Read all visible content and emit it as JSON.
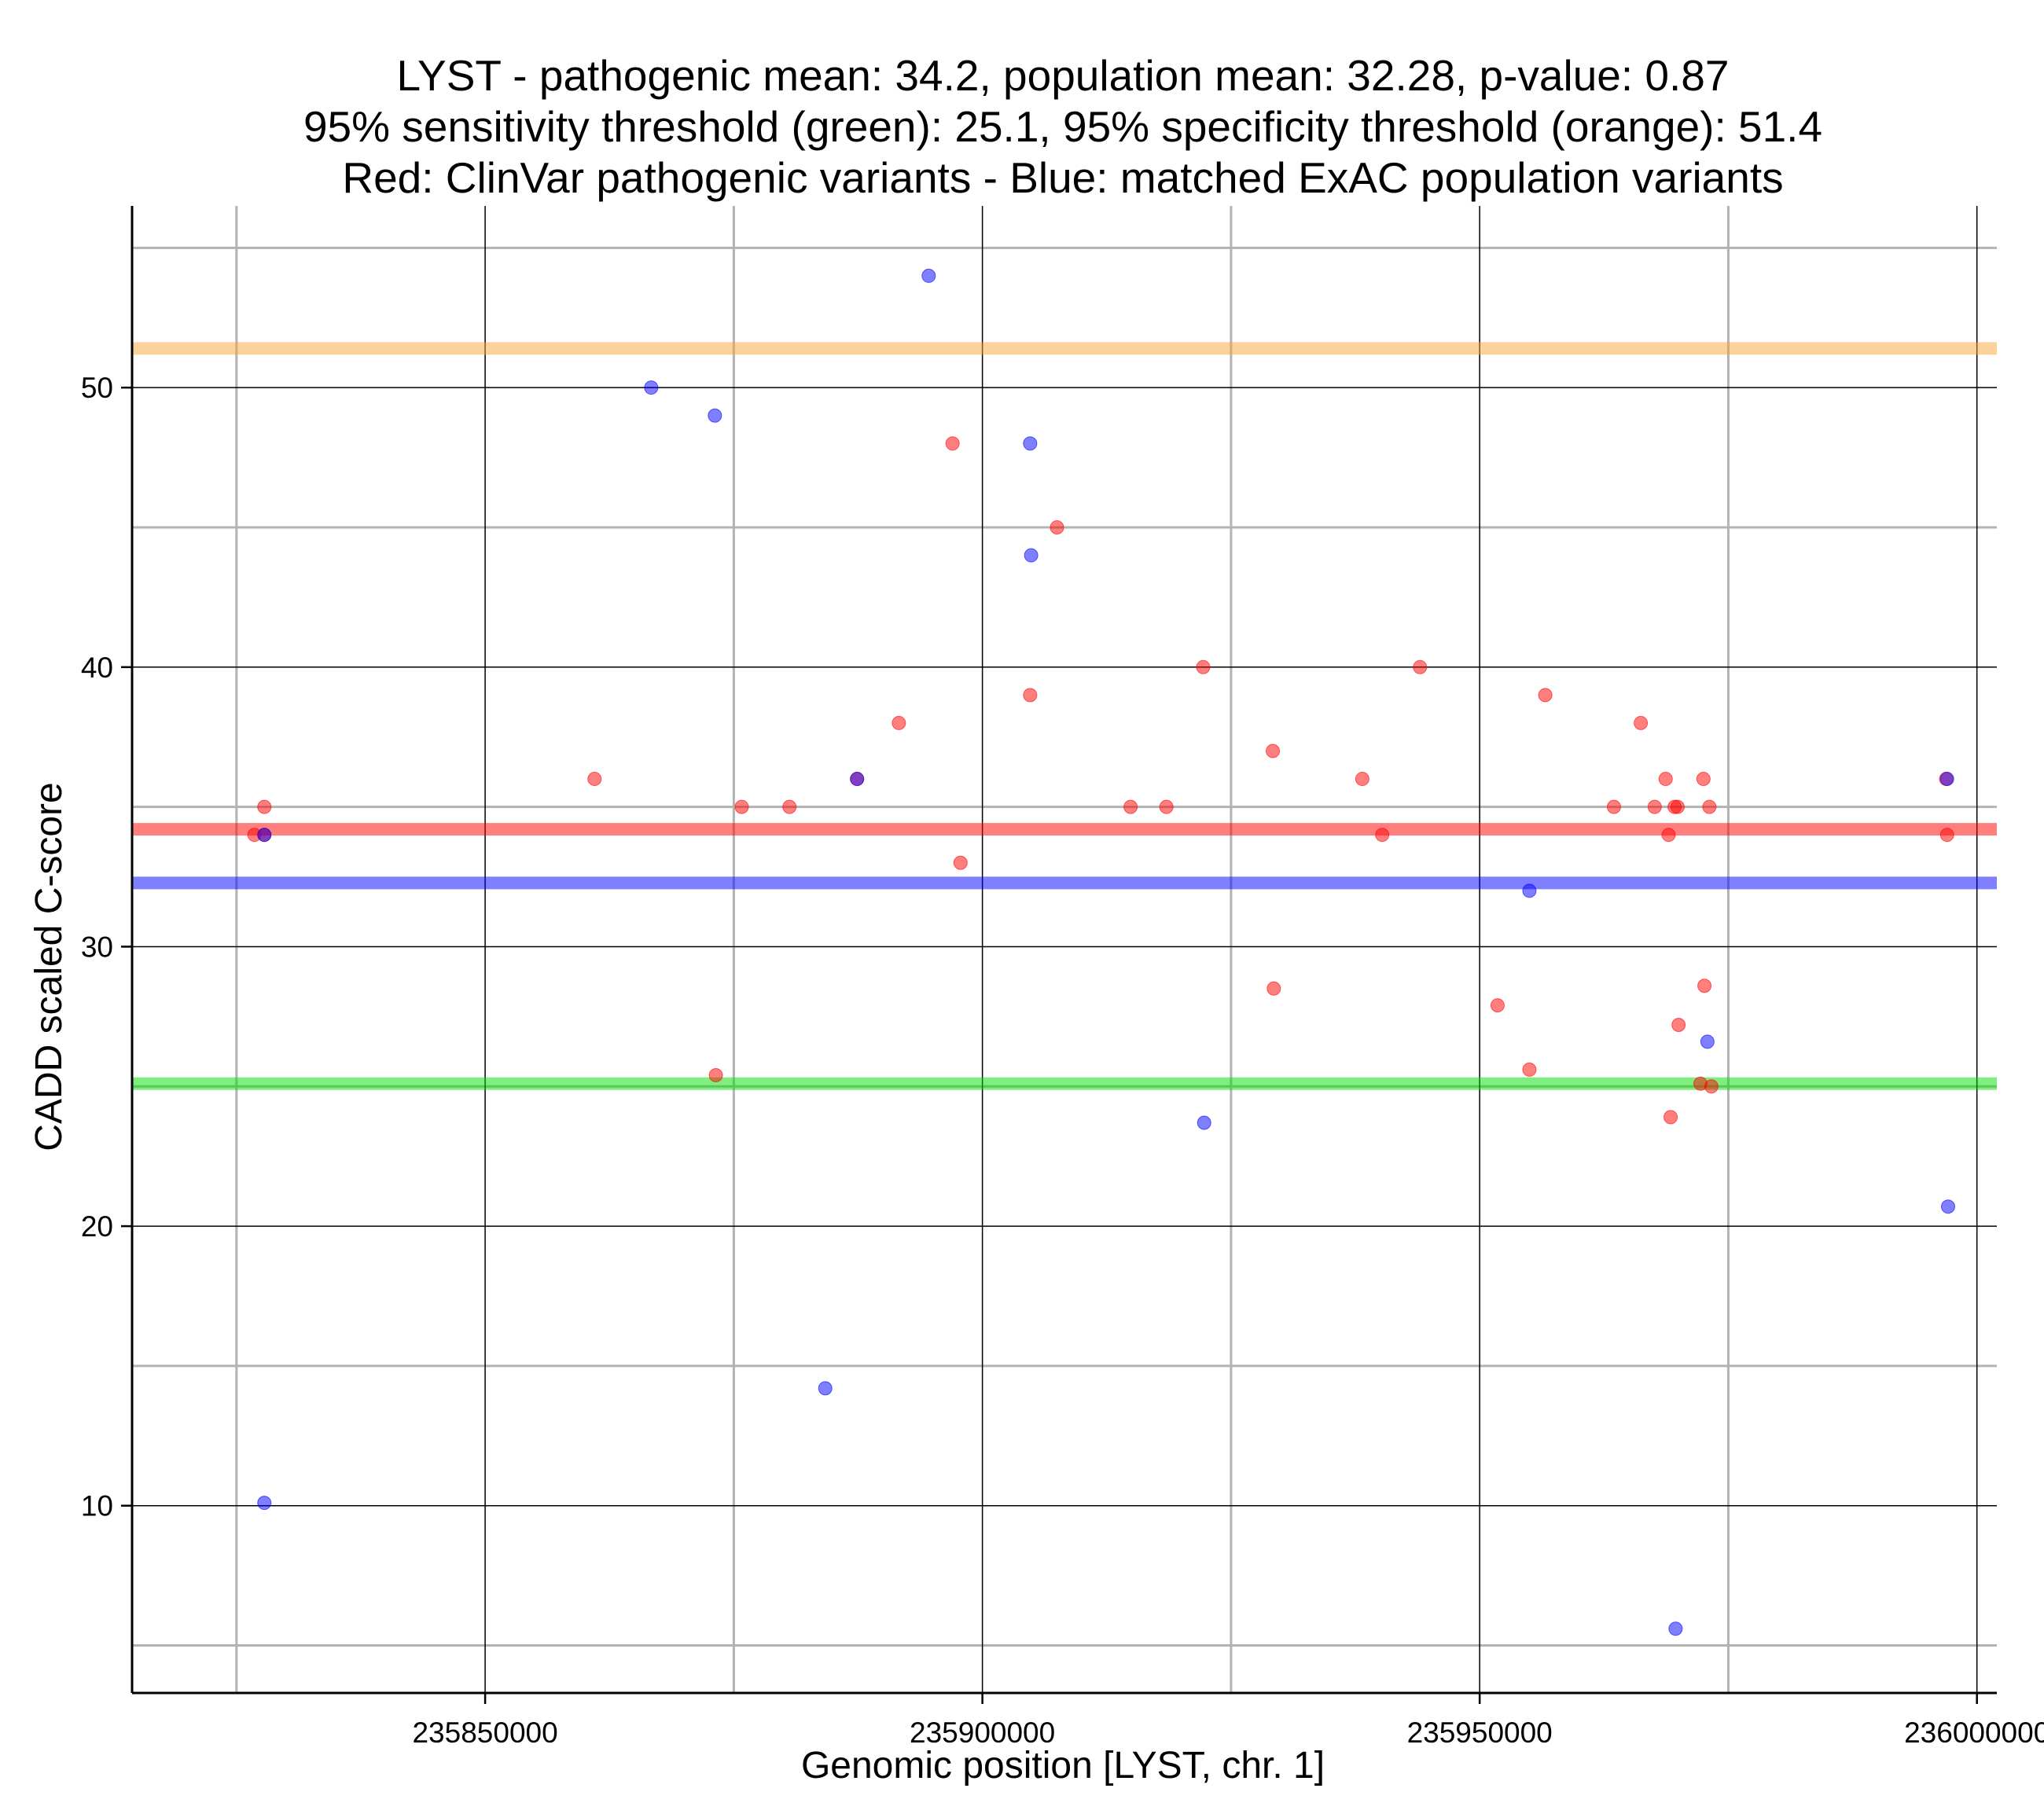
{
  "chart_data": {
    "type": "scatter",
    "title_lines": [
      "LYST - pathogenic mean: 34.2, population mean: 32.28, p-value: 0.87",
      "95% sensitivity threshold (green): 25.1, 95% specificity threshold (orange): 51.4",
      "Red: ClinVar pathogenic variants - Blue: matched ExAC population variants"
    ],
    "xlabel": "Genomic position [LYST, chr. 1]",
    "ylabel": "CADD scaled C-score",
    "xlim": [
      235814500,
      236002000
    ],
    "ylim": [
      3.3,
      56.5
    ],
    "x_major_ticks": [
      235850000,
      235900000,
      235950000,
      236000000
    ],
    "x_tick_labels": [
      "235850000",
      "235900000",
      "235950000",
      "236000000"
    ],
    "x_minor_gridlines": [
      235825000,
      235875000,
      235925000,
      235975000
    ],
    "y_major_ticks": [
      10,
      20,
      30,
      40,
      50
    ],
    "y_tick_labels": [
      "10",
      "20",
      "30",
      "40",
      "50"
    ],
    "y_minor_gridlines": [
      5,
      15,
      25,
      35,
      45,
      55
    ],
    "reference_lines": [
      {
        "name": "specificity-threshold",
        "value": 51.4,
        "color": "#f7a43a"
      },
      {
        "name": "pathogenic-mean",
        "value": 34.2,
        "color": "#ff0000"
      },
      {
        "name": "population-mean",
        "value": 32.28,
        "color": "#0000ff"
      },
      {
        "name": "sensitivity-threshold",
        "value": 25.1,
        "color": "#00dd00"
      }
    ],
    "series": [
      {
        "name": "ClinVar pathogenic variants",
        "color": "#ff0000",
        "points": [
          [
            235827800,
            35
          ],
          [
            235827800,
            34
          ],
          [
            235826800,
            34
          ],
          [
            235861000,
            36
          ],
          [
            235873200,
            25.4
          ],
          [
            235875800,
            35
          ],
          [
            235880600,
            35
          ],
          [
            235887400,
            36
          ],
          [
            235891600,
            38
          ],
          [
            235897000,
            48
          ],
          [
            235897800,
            33
          ],
          [
            235904800,
            39
          ],
          [
            235907500,
            45
          ],
          [
            235914900,
            35
          ],
          [
            235918500,
            35
          ],
          [
            235922200,
            40
          ],
          [
            235929200,
            37
          ],
          [
            235929300,
            28.5
          ],
          [
            235938200,
            36
          ],
          [
            235940200,
            34
          ],
          [
            235944000,
            40
          ],
          [
            235951800,
            27.9
          ],
          [
            235955000,
            25.6
          ],
          [
            235956600,
            39
          ],
          [
            235963500,
            35
          ],
          [
            235966200,
            38
          ],
          [
            235967600,
            35
          ],
          [
            235968700,
            36
          ],
          [
            235969000,
            34
          ],
          [
            235969200,
            23.9
          ],
          [
            235969600,
            35
          ],
          [
            235969900,
            35
          ],
          [
            235970000,
            27.2
          ],
          [
            235972200,
            25.1
          ],
          [
            235972500,
            36
          ],
          [
            235972600,
            28.6
          ],
          [
            235973100,
            35
          ],
          [
            235973300,
            25
          ],
          [
            235996900,
            36
          ],
          [
            235997000,
            34
          ]
        ]
      },
      {
        "name": "matched ExAC population variants",
        "color": "#0000ff",
        "points": [
          [
            235827800,
            34
          ],
          [
            235827800,
            10.1
          ],
          [
            235866700,
            50
          ],
          [
            235873100,
            49
          ],
          [
            235884200,
            14.2
          ],
          [
            235887400,
            36
          ],
          [
            235894600,
            54
          ],
          [
            235904800,
            48
          ],
          [
            235904900,
            44
          ],
          [
            235922300,
            23.7
          ],
          [
            235955000,
            32
          ],
          [
            235969700,
            5.6
          ],
          [
            235972900,
            26.6
          ],
          [
            235997000,
            36
          ],
          [
            235997100,
            20.7
          ]
        ]
      }
    ]
  }
}
